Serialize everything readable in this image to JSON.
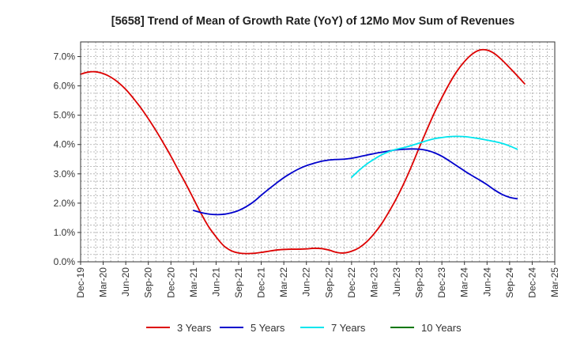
{
  "chart_data": {
    "type": "line",
    "title": "[5658]  Trend of Mean of Growth Rate (YoY) of 12Mo Mov Sum of Revenues",
    "xlabel": "",
    "ylabel": "",
    "ylim": [
      0,
      7.5
    ],
    "y_ticks": [
      0,
      1,
      2,
      3,
      4,
      5,
      6,
      7
    ],
    "y_tick_labels": [
      "0.0%",
      "1.0%",
      "2.0%",
      "3.0%",
      "4.0%",
      "5.0%",
      "6.0%",
      "7.0%"
    ],
    "x_tick_labels": [
      "Dec-19",
      "Mar-20",
      "Jun-20",
      "Sep-20",
      "Dec-20",
      "Mar-21",
      "Jun-21",
      "Sep-21",
      "Dec-21",
      "Mar-22",
      "Jun-22",
      "Sep-22",
      "Dec-22",
      "Mar-23",
      "Jun-23",
      "Sep-23",
      "Dec-23",
      "Mar-24",
      "Jun-24",
      "Sep-24",
      "Dec-24",
      "Mar-25"
    ],
    "x_range_months": [
      0,
      63
    ],
    "grid": true,
    "legend_position": "bottom",
    "series": [
      {
        "name": "3 Years",
        "color": "#dd0000",
        "points": [
          [
            0,
            6.4
          ],
          [
            1,
            6.47
          ],
          [
            2,
            6.48
          ],
          [
            3,
            6.42
          ],
          [
            4,
            6.3
          ],
          [
            5,
            6.12
          ],
          [
            6,
            5.88
          ],
          [
            7,
            5.58
          ],
          [
            8,
            5.25
          ],
          [
            9,
            4.88
          ],
          [
            10,
            4.48
          ],
          [
            11,
            4.05
          ],
          [
            12,
            3.6
          ],
          [
            13,
            3.12
          ],
          [
            14,
            2.65
          ],
          [
            15,
            2.15
          ],
          [
            16,
            1.65
          ],
          [
            17,
            1.2
          ],
          [
            18,
            0.85
          ],
          [
            19,
            0.55
          ],
          [
            20,
            0.38
          ],
          [
            21,
            0.3
          ],
          [
            22,
            0.28
          ],
          [
            23,
            0.29
          ],
          [
            24,
            0.32
          ],
          [
            25,
            0.36
          ],
          [
            26,
            0.4
          ],
          [
            27,
            0.42
          ],
          [
            28,
            0.43
          ],
          [
            29,
            0.43
          ],
          [
            30,
            0.44
          ],
          [
            31,
            0.46
          ],
          [
            32,
            0.45
          ],
          [
            33,
            0.4
          ],
          [
            34,
            0.32
          ],
          [
            35,
            0.3
          ],
          [
            36,
            0.36
          ],
          [
            37,
            0.48
          ],
          [
            38,
            0.68
          ],
          [
            39,
            0.96
          ],
          [
            40,
            1.3
          ],
          [
            41,
            1.72
          ],
          [
            42,
            2.18
          ],
          [
            43,
            2.7
          ],
          [
            44,
            3.28
          ],
          [
            45,
            3.9
          ],
          [
            46,
            4.5
          ],
          [
            47,
            5.08
          ],
          [
            48,
            5.6
          ],
          [
            49,
            6.08
          ],
          [
            50,
            6.5
          ],
          [
            51,
            6.83
          ],
          [
            52,
            7.08
          ],
          [
            53,
            7.22
          ],
          [
            54,
            7.22
          ],
          [
            55,
            7.1
          ],
          [
            56,
            6.88
          ],
          [
            57,
            6.62
          ],
          [
            58,
            6.35
          ],
          [
            59,
            6.07
          ]
        ]
      },
      {
        "name": "5 Years",
        "color": "#0000cc",
        "points": [
          [
            15,
            1.75
          ],
          [
            16,
            1.68
          ],
          [
            17,
            1.63
          ],
          [
            18,
            1.61
          ],
          [
            19,
            1.62
          ],
          [
            20,
            1.67
          ],
          [
            21,
            1.75
          ],
          [
            22,
            1.88
          ],
          [
            23,
            2.05
          ],
          [
            24,
            2.27
          ],
          [
            25,
            2.48
          ],
          [
            26,
            2.68
          ],
          [
            27,
            2.87
          ],
          [
            28,
            3.03
          ],
          [
            29,
            3.17
          ],
          [
            30,
            3.28
          ],
          [
            31,
            3.36
          ],
          [
            32,
            3.43
          ],
          [
            33,
            3.47
          ],
          [
            34,
            3.49
          ],
          [
            35,
            3.5
          ],
          [
            36,
            3.53
          ],
          [
            37,
            3.58
          ],
          [
            38,
            3.64
          ],
          [
            39,
            3.69
          ],
          [
            40,
            3.74
          ],
          [
            41,
            3.78
          ],
          [
            42,
            3.82
          ],
          [
            43,
            3.84
          ],
          [
            44,
            3.85
          ],
          [
            45,
            3.84
          ],
          [
            46,
            3.8
          ],
          [
            47,
            3.72
          ],
          [
            48,
            3.6
          ],
          [
            49,
            3.44
          ],
          [
            50,
            3.27
          ],
          [
            51,
            3.1
          ],
          [
            52,
            2.94
          ],
          [
            53,
            2.79
          ],
          [
            54,
            2.63
          ],
          [
            55,
            2.45
          ],
          [
            56,
            2.3
          ],
          [
            57,
            2.2
          ],
          [
            58,
            2.15
          ]
        ]
      },
      {
        "name": "7 Years",
        "color": "#00e5ee",
        "points": [
          [
            36,
            2.88
          ],
          [
            37,
            3.12
          ],
          [
            38,
            3.33
          ],
          [
            39,
            3.5
          ],
          [
            40,
            3.65
          ],
          [
            41,
            3.76
          ],
          [
            42,
            3.84
          ],
          [
            43,
            3.9
          ],
          [
            44,
            3.97
          ],
          [
            45,
            4.05
          ],
          [
            46,
            4.13
          ],
          [
            47,
            4.2
          ],
          [
            48,
            4.24
          ],
          [
            49,
            4.27
          ],
          [
            50,
            4.28
          ],
          [
            51,
            4.27
          ],
          [
            52,
            4.24
          ],
          [
            53,
            4.2
          ],
          [
            54,
            4.15
          ],
          [
            55,
            4.1
          ],
          [
            56,
            4.04
          ],
          [
            57,
            3.95
          ],
          [
            58,
            3.84
          ]
        ]
      },
      {
        "name": "10 Years",
        "color": "#007700",
        "points": []
      }
    ]
  }
}
